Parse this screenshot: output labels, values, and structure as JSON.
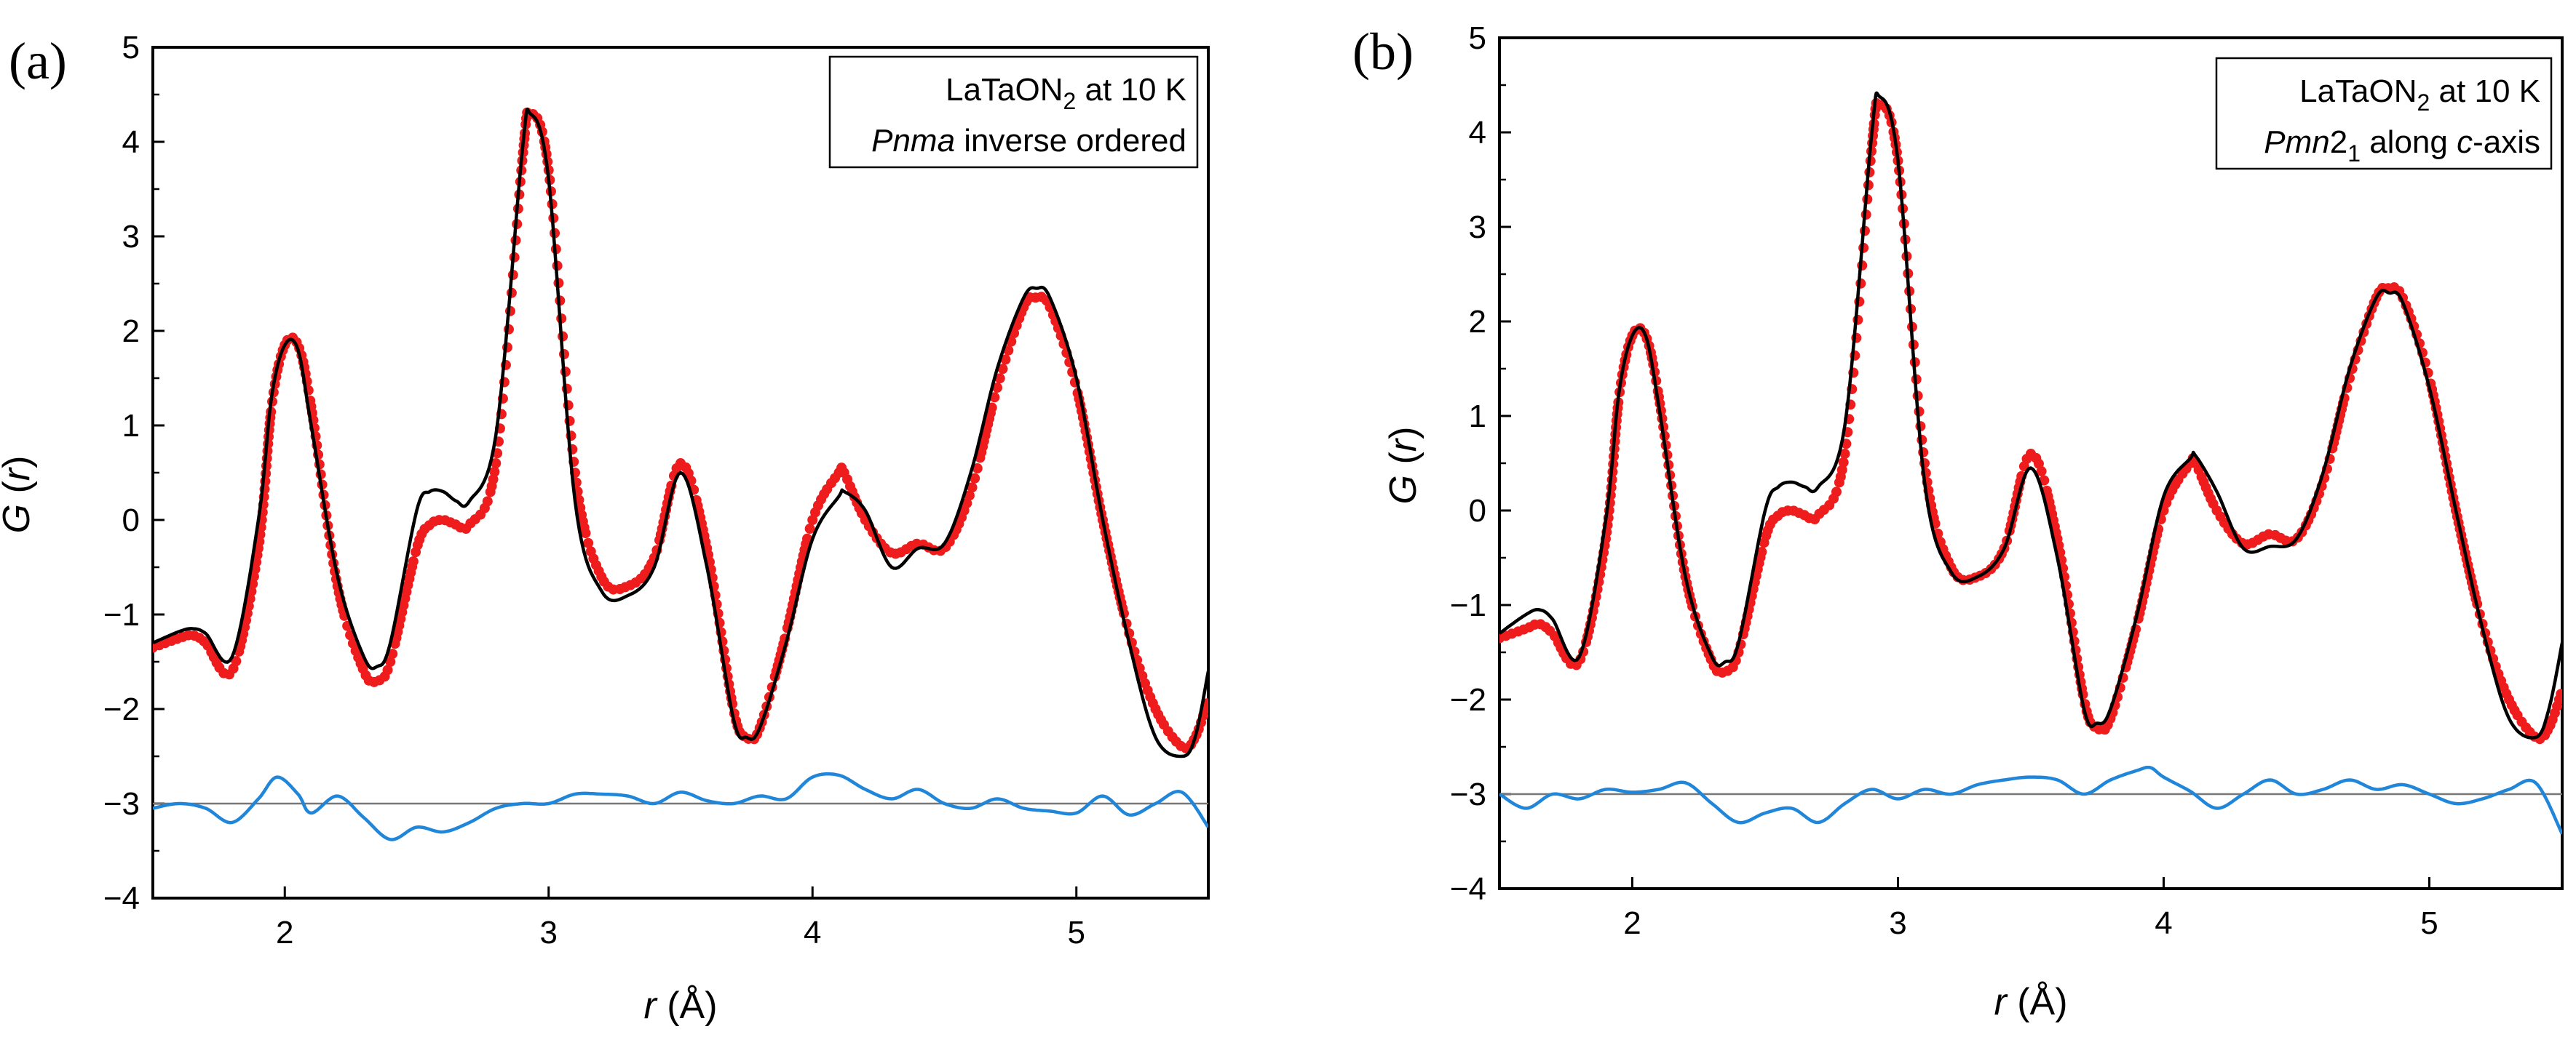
{
  "chart_data": [
    {
      "panel_label": "(a)",
      "type": "scatter",
      "xlabel": "r (Å)",
      "ylabel": "G (r)",
      "xlim": [
        1.5,
        5.5
      ],
      "ylim": [
        -4,
        5
      ],
      "xticks": [
        2,
        3,
        4,
        5
      ],
      "yticks": [
        -4,
        -3,
        -2,
        -1,
        0,
        1,
        2,
        3,
        4,
        5
      ],
      "legend": {
        "line1_main": "LaTaON",
        "line1_sub": "2",
        "line1_rest": " at 10 K",
        "line2_italic": "Pnma",
        "line2_rest": " inverse ordered",
        "placement": "top-right"
      },
      "difference_offset": -3,
      "series": [
        {
          "name": "observed",
          "style": "red-dots",
          "color": "#ee1c1c",
          "x": [
            1.5,
            1.6,
            1.65,
            1.7,
            1.8,
            1.9,
            1.95,
            2.0,
            2.05,
            2.1,
            2.2,
            2.3,
            2.35,
            2.4,
            2.5,
            2.55,
            2.6,
            2.65,
            2.7,
            2.8,
            2.9,
            2.93,
            3.0,
            3.1,
            3.2,
            3.3,
            3.4,
            3.5,
            3.6,
            3.7,
            3.75,
            3.8,
            3.9,
            4.0,
            4.1,
            4.12,
            4.2,
            4.3,
            4.4,
            4.5,
            4.6,
            4.7,
            4.8,
            4.85,
            4.9,
            5.0,
            5.1,
            5.2,
            5.3,
            5.4,
            5.45,
            5.5
          ],
          "y": [
            -1.35,
            -1.25,
            -1.22,
            -1.3,
            -1.6,
            -0.3,
            1.2,
            1.85,
            1.85,
            1.2,
            -0.7,
            -1.6,
            -1.7,
            -1.5,
            -0.3,
            -0.05,
            0.0,
            -0.05,
            -0.05,
            0.6,
            3.8,
            4.3,
            3.7,
            0.5,
            -0.6,
            -0.7,
            -0.4,
            0.6,
            -0.3,
            -2.0,
            -2.3,
            -2.2,
            -1.2,
            0.0,
            0.5,
            0.5,
            0.0,
            -0.35,
            -0.25,
            -0.3,
            0.3,
            1.4,
            2.25,
            2.35,
            2.25,
            1.4,
            0.0,
            -1.2,
            -2.0,
            -2.4,
            -2.3,
            -1.9
          ]
        },
        {
          "name": "calculated",
          "style": "black-line",
          "color": "#000000",
          "x": [
            1.5,
            1.6,
            1.65,
            1.7,
            1.8,
            1.9,
            1.95,
            2.0,
            2.05,
            2.1,
            2.2,
            2.3,
            2.35,
            2.4,
            2.5,
            2.55,
            2.6,
            2.65,
            2.7,
            2.8,
            2.9,
            2.93,
            3.0,
            3.1,
            3.2,
            3.3,
            3.4,
            3.5,
            3.6,
            3.7,
            3.75,
            3.8,
            3.9,
            4.0,
            4.1,
            4.12,
            4.2,
            4.3,
            4.4,
            4.5,
            4.6,
            4.7,
            4.8,
            4.85,
            4.9,
            5.0,
            5.1,
            5.2,
            5.3,
            5.4,
            5.45,
            5.5
          ],
          "y": [
            -1.3,
            -1.18,
            -1.15,
            -1.2,
            -1.45,
            0.0,
            1.3,
            1.85,
            1.8,
            1.0,
            -0.6,
            -1.45,
            -1.55,
            -1.3,
            0.1,
            0.3,
            0.3,
            0.2,
            0.2,
            0.9,
            3.9,
            4.3,
            3.6,
            0.2,
            -0.75,
            -0.8,
            -0.5,
            0.5,
            -0.5,
            -2.1,
            -2.3,
            -2.2,
            -1.3,
            -0.2,
            0.25,
            0.3,
            0.1,
            -0.5,
            -0.3,
            -0.25,
            0.5,
            1.6,
            2.35,
            2.45,
            2.35,
            1.5,
            0.0,
            -1.3,
            -2.3,
            -2.5,
            -2.3,
            -1.6
          ]
        },
        {
          "name": "difference",
          "style": "blue-line",
          "color": "#1f86d9",
          "x": [
            1.5,
            1.6,
            1.7,
            1.8,
            1.9,
            1.97,
            2.05,
            2.1,
            2.2,
            2.3,
            2.4,
            2.5,
            2.6,
            2.7,
            2.8,
            2.9,
            3.0,
            3.1,
            3.2,
            3.3,
            3.4,
            3.5,
            3.6,
            3.7,
            3.8,
            3.9,
            4.0,
            4.1,
            4.2,
            4.3,
            4.4,
            4.5,
            4.6,
            4.7,
            4.8,
            4.9,
            5.0,
            5.1,
            5.2,
            5.3,
            5.4,
            5.5
          ],
          "y": [
            -3.05,
            -3.0,
            -3.05,
            -3.2,
            -2.95,
            -2.72,
            -2.9,
            -3.1,
            -2.92,
            -3.15,
            -3.38,
            -3.25,
            -3.3,
            -3.2,
            -3.05,
            -3.0,
            -3.0,
            -2.9,
            -2.9,
            -2.92,
            -3.0,
            -2.88,
            -2.97,
            -3.0,
            -2.92,
            -2.95,
            -2.72,
            -2.7,
            -2.85,
            -2.95,
            -2.85,
            -3.0,
            -3.05,
            -2.95,
            -3.05,
            -3.08,
            -3.1,
            -2.92,
            -3.12,
            -3.0,
            -2.88,
            -3.25
          ]
        }
      ]
    },
    {
      "panel_label": "(b)",
      "type": "scatter",
      "xlabel": "r (Å)",
      "ylabel": "G (r)",
      "xlim": [
        1.5,
        5.5
      ],
      "ylim": [
        -4,
        5
      ],
      "xticks": [
        2,
        3,
        4,
        5
      ],
      "yticks": [
        -4,
        -3,
        -2,
        -1,
        0,
        1,
        2,
        3,
        4,
        5
      ],
      "legend": {
        "line1_main": "LaTaON",
        "line1_sub": "2",
        "line1_rest": " at 10 K",
        "line2_italic": "Pmn",
        "line2_mid": "2",
        "line2_sub": "1",
        "line2_rest": " along ",
        "line2_italic2": "c",
        "line2_end": "-axis",
        "placement": "top-right"
      },
      "difference_offset": -3,
      "series": [
        {
          "name": "observed",
          "style": "red-dots",
          "color": "#ee1c1c",
          "x": [
            1.5,
            1.6,
            1.65,
            1.7,
            1.8,
            1.9,
            1.95,
            2.0,
            2.05,
            2.1,
            2.2,
            2.3,
            2.35,
            2.4,
            2.5,
            2.55,
            2.6,
            2.65,
            2.7,
            2.8,
            2.9,
            2.93,
            3.0,
            3.1,
            3.2,
            3.3,
            3.4,
            3.5,
            3.6,
            3.7,
            3.75,
            3.8,
            3.9,
            4.0,
            4.1,
            4.12,
            4.2,
            4.3,
            4.4,
            4.5,
            4.6,
            4.7,
            4.8,
            4.85,
            4.9,
            5.0,
            5.1,
            5.2,
            5.3,
            5.4,
            5.45,
            5.5
          ],
          "y": [
            -1.35,
            -1.25,
            -1.2,
            -1.3,
            -1.6,
            -0.3,
            1.2,
            1.85,
            1.85,
            1.2,
            -0.7,
            -1.6,
            -1.7,
            -1.5,
            -0.3,
            -0.05,
            0.0,
            -0.05,
            -0.05,
            0.6,
            3.8,
            4.3,
            3.7,
            0.5,
            -0.6,
            -0.7,
            -0.4,
            0.6,
            -0.3,
            -2.0,
            -2.3,
            -2.2,
            -1.2,
            0.0,
            0.5,
            0.5,
            0.0,
            -0.35,
            -0.25,
            -0.3,
            0.3,
            1.4,
            2.25,
            2.35,
            2.25,
            1.4,
            0.0,
            -1.2,
            -2.0,
            -2.4,
            -2.3,
            -1.9
          ]
        },
        {
          "name": "calculated",
          "style": "black-line",
          "color": "#000000",
          "x": [
            1.5,
            1.6,
            1.65,
            1.7,
            1.8,
            1.9,
            1.95,
            2.0,
            2.05,
            2.1,
            2.2,
            2.3,
            2.35,
            2.4,
            2.5,
            2.55,
            2.6,
            2.65,
            2.7,
            2.8,
            2.9,
            2.93,
            3.0,
            3.1,
            3.2,
            3.3,
            3.4,
            3.5,
            3.6,
            3.7,
            3.75,
            3.8,
            3.9,
            4.0,
            4.1,
            4.12,
            4.2,
            4.3,
            4.4,
            4.5,
            4.6,
            4.7,
            4.8,
            4.85,
            4.9,
            5.0,
            5.1,
            5.2,
            5.3,
            5.4,
            5.45,
            5.5
          ],
          "y": [
            -1.3,
            -1.1,
            -1.05,
            -1.15,
            -1.55,
            -0.1,
            1.25,
            1.85,
            1.85,
            1.1,
            -0.7,
            -1.55,
            -1.6,
            -1.4,
            0.0,
            0.25,
            0.3,
            0.25,
            0.25,
            0.9,
            3.95,
            4.38,
            3.7,
            0.3,
            -0.65,
            -0.7,
            -0.4,
            0.45,
            -0.5,
            -2.1,
            -2.25,
            -2.1,
            -1.1,
            0.15,
            0.55,
            0.58,
            0.2,
            -0.4,
            -0.38,
            -0.3,
            0.4,
            1.5,
            2.25,
            2.3,
            2.2,
            1.3,
            0.0,
            -1.25,
            -2.2,
            -2.4,
            -2.1,
            -1.4
          ]
        },
        {
          "name": "difference",
          "style": "blue-line",
          "color": "#1f86d9",
          "x": [
            1.5,
            1.6,
            1.7,
            1.8,
            1.9,
            2.0,
            2.1,
            2.2,
            2.3,
            2.4,
            2.5,
            2.6,
            2.7,
            2.8,
            2.9,
            3.0,
            3.1,
            3.2,
            3.3,
            3.4,
            3.5,
            3.6,
            3.7,
            3.8,
            3.9,
            3.95,
            4.0,
            4.1,
            4.2,
            4.3,
            4.4,
            4.5,
            4.6,
            4.7,
            4.8,
            4.9,
            5.0,
            5.1,
            5.2,
            5.3,
            5.4,
            5.5
          ],
          "y": [
            -3.0,
            -3.15,
            -3.0,
            -3.05,
            -2.95,
            -2.98,
            -2.95,
            -2.88,
            -3.1,
            -3.3,
            -3.2,
            -3.15,
            -3.3,
            -3.1,
            -2.95,
            -3.05,
            -2.95,
            -3.0,
            -2.9,
            -2.85,
            -2.82,
            -2.85,
            -3.0,
            -2.85,
            -2.75,
            -2.72,
            -2.82,
            -2.97,
            -3.15,
            -3.0,
            -2.85,
            -3.0,
            -2.95,
            -2.85,
            -2.95,
            -2.9,
            -3.0,
            -3.1,
            -3.05,
            -2.95,
            -2.88,
            -3.42
          ]
        }
      ]
    }
  ]
}
